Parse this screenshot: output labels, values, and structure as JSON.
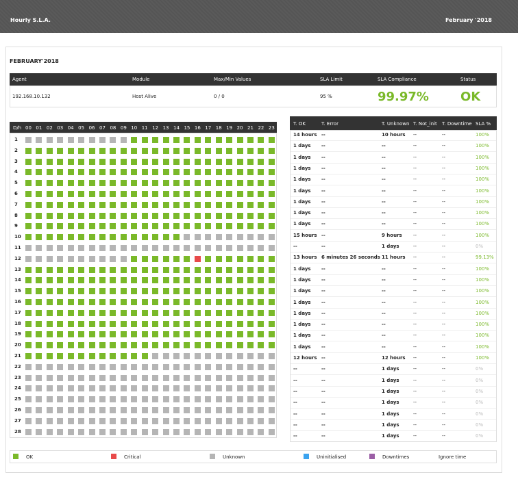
{
  "header": {
    "title": "Hourly S.L.A.",
    "date": "February '2018"
  },
  "heading": "FEBRUARY'2018",
  "summary": {
    "headers": [
      "Agent",
      "Module",
      "Max/Min Values",
      "SLA Limit",
      "SLA Compliance",
      "Status"
    ],
    "row": [
      "192.168.10.132",
      "Host Alive",
      "0 / 0",
      "95 %",
      "99.97%",
      "OK"
    ]
  },
  "grid": {
    "corner": "D/h",
    "hours": [
      "00",
      "01",
      "02",
      "03",
      "04",
      "05",
      "06",
      "07",
      "08",
      "09",
      "10",
      "11",
      "12",
      "13",
      "14",
      "15",
      "16",
      "17",
      "18",
      "19",
      "20",
      "21",
      "22",
      "23"
    ],
    "days": [
      1,
      2,
      3,
      4,
      5,
      6,
      7,
      8,
      9,
      10,
      11,
      12,
      13,
      14,
      15,
      16,
      17,
      18,
      19,
      20,
      21,
      22,
      23,
      24,
      25,
      26,
      27,
      28
    ],
    "cells": [
      [
        2,
        2,
        2,
        2,
        2,
        2,
        2,
        2,
        2,
        2,
        0,
        0,
        0,
        0,
        0,
        0,
        0,
        0,
        0,
        0,
        0,
        0,
        0,
        0
      ],
      [
        0,
        0,
        0,
        0,
        0,
        0,
        0,
        0,
        0,
        0,
        0,
        0,
        0,
        0,
        0,
        0,
        0,
        0,
        0,
        0,
        0,
        0,
        0,
        0
      ],
      [
        0,
        0,
        0,
        0,
        0,
        0,
        0,
        0,
        0,
        0,
        0,
        0,
        0,
        0,
        0,
        0,
        0,
        0,
        0,
        0,
        0,
        0,
        0,
        0
      ],
      [
        0,
        0,
        0,
        0,
        0,
        0,
        0,
        0,
        0,
        0,
        0,
        0,
        0,
        0,
        0,
        0,
        0,
        0,
        0,
        0,
        0,
        0,
        0,
        0
      ],
      [
        0,
        0,
        0,
        0,
        0,
        0,
        0,
        0,
        0,
        0,
        0,
        0,
        0,
        0,
        0,
        0,
        0,
        0,
        0,
        0,
        0,
        0,
        0,
        0
      ],
      [
        0,
        0,
        0,
        0,
        0,
        0,
        0,
        0,
        0,
        0,
        0,
        0,
        0,
        0,
        0,
        0,
        0,
        0,
        0,
        0,
        0,
        0,
        0,
        0
      ],
      [
        0,
        0,
        0,
        0,
        0,
        0,
        0,
        0,
        0,
        0,
        0,
        0,
        0,
        0,
        0,
        0,
        0,
        0,
        0,
        0,
        0,
        0,
        0,
        0
      ],
      [
        0,
        0,
        0,
        0,
        0,
        0,
        0,
        0,
        0,
        0,
        0,
        0,
        0,
        0,
        0,
        0,
        0,
        0,
        0,
        0,
        0,
        0,
        0,
        0
      ],
      [
        0,
        0,
        0,
        0,
        0,
        0,
        0,
        0,
        0,
        0,
        0,
        0,
        0,
        0,
        0,
        0,
        0,
        0,
        0,
        0,
        0,
        0,
        0,
        0
      ],
      [
        0,
        0,
        0,
        0,
        0,
        0,
        0,
        0,
        0,
        0,
        0,
        0,
        0,
        0,
        0,
        2,
        2,
        2,
        2,
        2,
        2,
        2,
        2,
        2
      ],
      [
        2,
        2,
        2,
        2,
        2,
        2,
        2,
        2,
        2,
        2,
        2,
        2,
        2,
        2,
        2,
        2,
        2,
        2,
        2,
        2,
        2,
        2,
        2,
        2
      ],
      [
        2,
        2,
        2,
        2,
        2,
        2,
        2,
        2,
        2,
        2,
        0,
        0,
        0,
        0,
        0,
        0,
        1,
        0,
        0,
        0,
        0,
        0,
        0,
        0
      ],
      [
        0,
        0,
        0,
        0,
        0,
        0,
        0,
        0,
        0,
        0,
        0,
        0,
        0,
        0,
        0,
        0,
        0,
        0,
        0,
        0,
        0,
        0,
        0,
        0
      ],
      [
        0,
        0,
        0,
        0,
        0,
        0,
        0,
        0,
        0,
        0,
        0,
        0,
        0,
        0,
        0,
        0,
        0,
        0,
        0,
        0,
        0,
        0,
        0,
        0
      ],
      [
        0,
        0,
        0,
        0,
        0,
        0,
        0,
        0,
        0,
        0,
        0,
        0,
        0,
        0,
        0,
        0,
        0,
        0,
        0,
        0,
        0,
        0,
        0,
        0
      ],
      [
        0,
        0,
        0,
        0,
        0,
        0,
        0,
        0,
        0,
        0,
        0,
        0,
        0,
        0,
        0,
        0,
        0,
        0,
        0,
        0,
        0,
        0,
        0,
        0
      ],
      [
        0,
        0,
        0,
        0,
        0,
        0,
        0,
        0,
        0,
        0,
        0,
        0,
        0,
        0,
        0,
        0,
        0,
        0,
        0,
        0,
        0,
        0,
        0,
        0
      ],
      [
        0,
        0,
        0,
        0,
        0,
        0,
        0,
        0,
        0,
        0,
        0,
        0,
        0,
        0,
        0,
        0,
        0,
        0,
        0,
        0,
        0,
        0,
        0,
        0
      ],
      [
        0,
        0,
        0,
        0,
        0,
        0,
        0,
        0,
        0,
        0,
        0,
        0,
        0,
        0,
        0,
        0,
        0,
        0,
        0,
        0,
        0,
        0,
        0,
        0
      ],
      [
        0,
        0,
        0,
        0,
        0,
        0,
        0,
        0,
        0,
        0,
        0,
        0,
        0,
        0,
        0,
        0,
        0,
        0,
        0,
        0,
        0,
        0,
        0,
        0
      ],
      [
        0,
        0,
        0,
        0,
        0,
        0,
        0,
        0,
        0,
        0,
        0,
        0,
        2,
        2,
        2,
        2,
        2,
        2,
        2,
        2,
        2,
        2,
        2,
        2
      ],
      [
        2,
        2,
        2,
        2,
        2,
        2,
        2,
        2,
        2,
        2,
        2,
        2,
        2,
        2,
        2,
        2,
        2,
        2,
        2,
        2,
        2,
        2,
        2,
        2
      ],
      [
        2,
        2,
        2,
        2,
        2,
        2,
        2,
        2,
        2,
        2,
        2,
        2,
        2,
        2,
        2,
        2,
        2,
        2,
        2,
        2,
        2,
        2,
        2,
        2
      ],
      [
        2,
        2,
        2,
        2,
        2,
        2,
        2,
        2,
        2,
        2,
        2,
        2,
        2,
        2,
        2,
        2,
        2,
        2,
        2,
        2,
        2,
        2,
        2,
        2
      ],
      [
        2,
        2,
        2,
        2,
        2,
        2,
        2,
        2,
        2,
        2,
        2,
        2,
        2,
        2,
        2,
        2,
        2,
        2,
        2,
        2,
        2,
        2,
        2,
        2
      ],
      [
        2,
        2,
        2,
        2,
        2,
        2,
        2,
        2,
        2,
        2,
        2,
        2,
        2,
        2,
        2,
        2,
        2,
        2,
        2,
        2,
        2,
        2,
        2,
        2
      ],
      [
        2,
        2,
        2,
        2,
        2,
        2,
        2,
        2,
        2,
        2,
        2,
        2,
        2,
        2,
        2,
        2,
        2,
        2,
        2,
        2,
        2,
        2,
        2,
        2
      ],
      [
        2,
        2,
        2,
        2,
        2,
        2,
        2,
        2,
        2,
        2,
        2,
        2,
        2,
        2,
        2,
        2,
        2,
        2,
        2,
        2,
        2,
        2,
        2,
        2
      ]
    ]
  },
  "times": {
    "headers": [
      "T. OK",
      "T. Error",
      "T. Unknown",
      "T. Not_init",
      "T. Downtime",
      "SLA %"
    ],
    "rows": [
      [
        "14 hours",
        "--",
        "10 hours",
        "--",
        "--",
        "100%"
      ],
      [
        "1 days",
        "--",
        "--",
        "--",
        "--",
        "100%"
      ],
      [
        "1 days",
        "--",
        "--",
        "--",
        "--",
        "100%"
      ],
      [
        "1 days",
        "--",
        "--",
        "--",
        "--",
        "100%"
      ],
      [
        "1 days",
        "--",
        "--",
        "--",
        "--",
        "100%"
      ],
      [
        "1 days",
        "--",
        "--",
        "--",
        "--",
        "100%"
      ],
      [
        "1 days",
        "--",
        "--",
        "--",
        "--",
        "100%"
      ],
      [
        "1 days",
        "--",
        "--",
        "--",
        "--",
        "100%"
      ],
      [
        "1 days",
        "--",
        "--",
        "--",
        "--",
        "100%"
      ],
      [
        "15 hours",
        "--",
        "9 hours",
        "--",
        "--",
        "100%"
      ],
      [
        "--",
        "--",
        "1 days",
        "--",
        "--",
        "0%"
      ],
      [
        "13 hours",
        "6 minutes 26 seconds",
        "11 hours",
        "--",
        "--",
        "99.13%"
      ],
      [
        "1 days",
        "--",
        "--",
        "--",
        "--",
        "100%"
      ],
      [
        "1 days",
        "--",
        "--",
        "--",
        "--",
        "100%"
      ],
      [
        "1 days",
        "--",
        "--",
        "--",
        "--",
        "100%"
      ],
      [
        "1 days",
        "--",
        "--",
        "--",
        "--",
        "100%"
      ],
      [
        "1 days",
        "--",
        "--",
        "--",
        "--",
        "100%"
      ],
      [
        "1 days",
        "--",
        "--",
        "--",
        "--",
        "100%"
      ],
      [
        "1 days",
        "--",
        "--",
        "--",
        "--",
        "100%"
      ],
      [
        "1 days",
        "--",
        "--",
        "--",
        "--",
        "100%"
      ],
      [
        "12 hours",
        "--",
        "12 hours",
        "--",
        "--",
        "100%"
      ],
      [
        "--",
        "--",
        "1 days",
        "--",
        "--",
        "0%"
      ],
      [
        "--",
        "--",
        "1 days",
        "--",
        "--",
        "0%"
      ],
      [
        "--",
        "--",
        "1 days",
        "--",
        "--",
        "0%"
      ],
      [
        "--",
        "--",
        "1 days",
        "--",
        "--",
        "0%"
      ],
      [
        "--",
        "--",
        "1 days",
        "--",
        "--",
        "0%"
      ],
      [
        "--",
        "--",
        "1 days",
        "--",
        "--",
        "0%"
      ],
      [
        "--",
        "--",
        "1 days",
        "--",
        "--",
        "0%"
      ]
    ]
  },
  "legend": [
    {
      "label": "OK",
      "color": "#7ab929"
    },
    {
      "label": "Critical",
      "color": "#e84a4a"
    },
    {
      "label": "Unknown",
      "color": "#b5b5b5"
    },
    {
      "label": "Uninitialised",
      "color": "#3ba3ef"
    },
    {
      "label": "Downtimes",
      "color": "#9b5ea5"
    },
    {
      "label": "Ignore time"
    }
  ]
}
